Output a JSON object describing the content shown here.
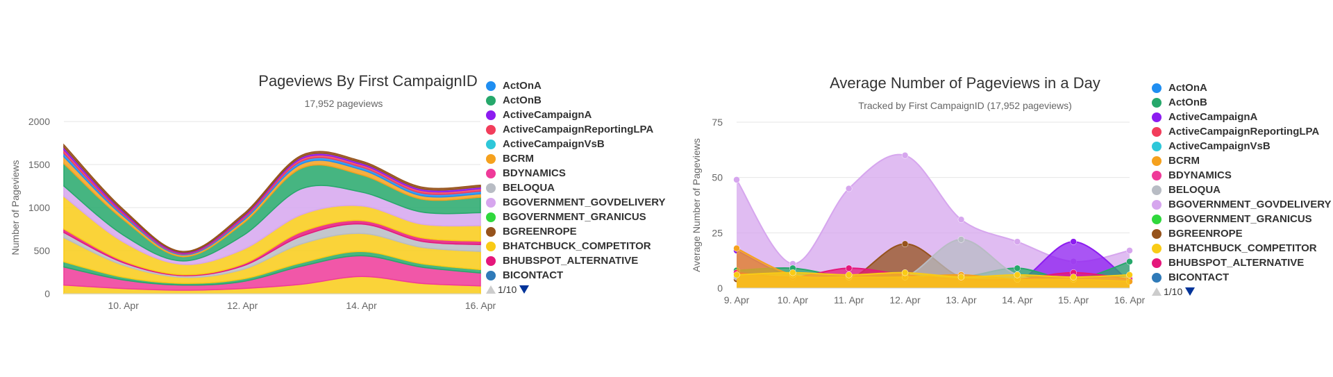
{
  "legend_entries": [
    {
      "name": "ActOnA",
      "color": "#1f8ef1"
    },
    {
      "name": "ActOnB",
      "color": "#26a86b"
    },
    {
      "name": "ActiveCampaignA",
      "color": "#8c1cf0"
    },
    {
      "name": "ActiveCampaignReportingLPA",
      "color": "#f23d5b"
    },
    {
      "name": "ActiveCampaignVsB",
      "color": "#2ec7d9"
    },
    {
      "name": "BCRM",
      "color": "#f5a11e"
    },
    {
      "name": "BDYNAMICS",
      "color": "#ef3a99"
    },
    {
      "name": "BELOQUA",
      "color": "#b8bcc4"
    },
    {
      "name": "BGOVERNMENT_GOVDELIVERY",
      "color": "#d6a6ee"
    },
    {
      "name": "BGOVERNMENT_GRANICUS",
      "color": "#2fd83c"
    },
    {
      "name": "BGREENROPE",
      "color": "#96531c"
    },
    {
      "name": "BHATCHBUCK_COMPETITOR",
      "color": "#f9cb16"
    },
    {
      "name": "BHUBSPOT_ALTERNATIVE",
      "color": "#e5177b"
    },
    {
      "name": "BICONTACT",
      "color": "#2f7ab8"
    }
  ],
  "chart_data": [
    {
      "type": "area",
      "title": "Pageviews By First CampaignID",
      "subtitle": "17,952 pageviews",
      "ylabel": "Number of Pageviews",
      "xlabel": "",
      "ylim": [
        0,
        2000
      ],
      "yticks": [
        "0",
        "500",
        "1000",
        "1500",
        "2000"
      ],
      "xlim": [
        9,
        16
      ],
      "xticks": [
        {
          "x": 10,
          "label": "10. Apr"
        },
        {
          "x": 12,
          "label": "12. Apr"
        },
        {
          "x": 14,
          "label": "14. Apr"
        },
        {
          "x": 16,
          "label": "16. Apr"
        }
      ],
      "stacked": true,
      "legend_page": "1/10",
      "x": [
        9,
        10,
        11,
        12,
        13,
        14,
        15,
        16
      ],
      "series": [
        {
          "name": "BHATCHBUCK_COMPETITOR",
          "color": "#f9cb16",
          "values": [
            100,
            60,
            40,
            60,
            110,
            200,
            120,
            90
          ]
        },
        {
          "name": "BDYNAMICS",
          "color": "#ef3a99",
          "values": [
            210,
            100,
            60,
            80,
            210,
            240,
            190,
            150
          ]
        },
        {
          "name": "ActOnB",
          "color": "#26a86b",
          "values": [
            60,
            30,
            20,
            30,
            40,
            50,
            40,
            40
          ]
        },
        {
          "name": "BHATCHBUCK_COMPETITOR",
          "color": "#f9cb16",
          "values": [
            280,
            140,
            70,
            110,
            220,
            210,
            190,
            210
          ]
        },
        {
          "name": "BELOQUA",
          "color": "#b8bcc4",
          "values": [
            60,
            30,
            20,
            40,
            90,
            110,
            70,
            80
          ]
        },
        {
          "name": "BHUBSPOT_ALTERNATIVE",
          "color": "#e5177b",
          "values": [
            40,
            20,
            10,
            20,
            50,
            40,
            40,
            40
          ]
        },
        {
          "name": "BHATCHBUCK_COMPETITOR",
          "color": "#f9cb16",
          "values": [
            380,
            220,
            120,
            170,
            200,
            170,
            160,
            180
          ]
        },
        {
          "name": "BGOVERNMENT_GOVDELIVERY",
          "color": "#d6a6ee",
          "values": [
            120,
            80,
            40,
            160,
            300,
            160,
            140,
            150
          ]
        },
        {
          "name": "ActOnB",
          "color": "#26a86b",
          "values": [
            260,
            180,
            50,
            140,
            240,
            200,
            150,
            180
          ]
        },
        {
          "name": "BCRM",
          "color": "#f5a11e",
          "values": [
            80,
            40,
            20,
            30,
            50,
            60,
            40,
            40
          ]
        },
        {
          "name": "ActOnA",
          "color": "#1f8ef1",
          "values": [
            40,
            20,
            10,
            20,
            30,
            30,
            30,
            30
          ]
        },
        {
          "name": "ActiveCampaignReportingLPA",
          "color": "#f23d5b",
          "values": [
            40,
            20,
            10,
            20,
            30,
            30,
            30,
            30
          ]
        },
        {
          "name": "ActiveCampaignA",
          "color": "#8c1cf0",
          "values": [
            30,
            20,
            10,
            15,
            20,
            20,
            20,
            20
          ]
        },
        {
          "name": "BGREENROPE",
          "color": "#96531c",
          "values": [
            30,
            20,
            10,
            20,
            20,
            20,
            20,
            20
          ]
        }
      ]
    },
    {
      "type": "area",
      "title": "Average Number of Pageviews in a Day",
      "subtitle": "Tracked by First CampaignID (17,952 pageviews)",
      "ylabel": "Average Number of Pageviews",
      "xlabel": "",
      "ylim": [
        0,
        75
      ],
      "yticks": [
        "0",
        "25",
        "50",
        "75"
      ],
      "xlim": [
        9,
        16
      ],
      "xticks": [
        {
          "x": 9,
          "label": "9. Apr"
        },
        {
          "x": 10,
          "label": "10. Apr"
        },
        {
          "x": 11,
          "label": "11. Apr"
        },
        {
          "x": 12,
          "label": "12. Apr"
        },
        {
          "x": 13,
          "label": "13. Apr"
        },
        {
          "x": 14,
          "label": "14. Apr"
        },
        {
          "x": 15,
          "label": "15. Apr"
        },
        {
          "x": 16,
          "label": "16. Apr"
        }
      ],
      "stacked": false,
      "legend_page": "1/10",
      "x": [
        9,
        10,
        11,
        12,
        13,
        14,
        15,
        16
      ],
      "series": [
        {
          "name": "BGOVERNMENT_GOVDELIVERY",
          "color": "#d6a6ee",
          "values": [
            49,
            11,
            45,
            60,
            31,
            21,
            12,
            17
          ]
        },
        {
          "name": "BGREENROPE",
          "color": "#96531c",
          "values": [
            4,
            4,
            4,
            20,
            5,
            4,
            3,
            3
          ]
        },
        {
          "name": "ActiveCampaignA",
          "color": "#8c1cf0",
          "values": [
            17,
            5,
            4,
            5,
            4,
            3,
            21,
            3
          ]
        },
        {
          "name": "ActOnB",
          "color": "#26a86b",
          "values": [
            8,
            9,
            5,
            6,
            5,
            9,
            4,
            12
          ]
        },
        {
          "name": "BELOQUA",
          "color": "#b8bcc4",
          "values": [
            5,
            6,
            4,
            5,
            22,
            6,
            4,
            5
          ]
        },
        {
          "name": "BHUBSPOT_ALTERNATIVE",
          "color": "#e5177b",
          "values": [
            7,
            5,
            9,
            6,
            4,
            4,
            7,
            4
          ]
        },
        {
          "name": "BCRM",
          "color": "#f5a11e",
          "values": [
            18,
            6,
            5,
            5,
            6,
            4,
            4,
            3
          ]
        },
        {
          "name": "BHATCHBUCK_COMPETITOR",
          "color": "#f9cb16",
          "values": [
            6,
            7,
            6,
            7,
            5,
            6,
            5,
            6
          ]
        }
      ]
    }
  ]
}
